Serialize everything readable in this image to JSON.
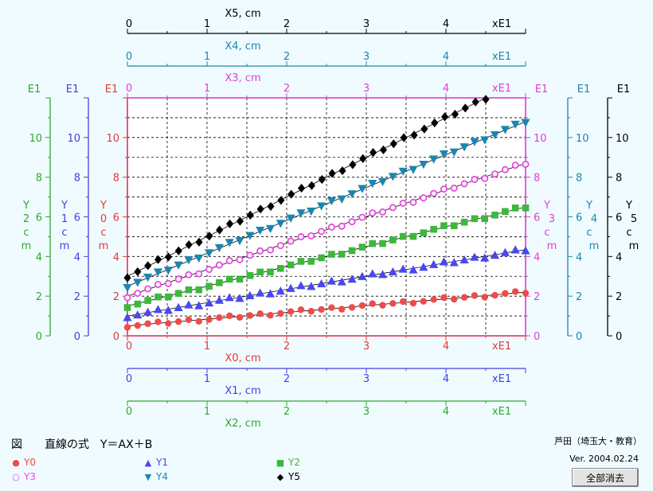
{
  "chart_data": {
    "type": "scatter",
    "x_axes": [
      {
        "id": "X5",
        "label": "X5, cm",
        "ticks": [
          "0",
          "1",
          "2",
          "3",
          "4"
        ],
        "unit": "xE1",
        "color": "#000000"
      },
      {
        "id": "X4",
        "label": "X4, cm",
        "ticks": [
          "0",
          "1",
          "2",
          "3",
          "4"
        ],
        "unit": "xE1",
        "color": "#1a86b0"
      },
      {
        "id": "X3",
        "label": "X3, cm",
        "ticks": [
          "0",
          "1",
          "2",
          "3",
          "4"
        ],
        "unit": "xE1",
        "color": "#e040d0"
      },
      {
        "id": "X0",
        "label": "X0, cm",
        "ticks": [
          "0",
          "1",
          "2",
          "3",
          "4"
        ],
        "unit": "xE1",
        "color": "#e03a3a"
      },
      {
        "id": "X1",
        "label": "X1, cm",
        "ticks": [
          "0",
          "1",
          "2",
          "3",
          "4"
        ],
        "unit": "xE1",
        "color": "#4040e0"
      },
      {
        "id": "X2",
        "label": "X2, cm",
        "ticks": [
          "0",
          "1",
          "2",
          "3",
          "4"
        ],
        "unit": "xE1",
        "color": "#2ea82e"
      }
    ],
    "y_axes": [
      {
        "id": "Y2",
        "side": "left",
        "exp": "E1",
        "label": "Y2 cm",
        "ticks": [
          "0",
          "2",
          "4",
          "6",
          "8",
          "10"
        ],
        "color": "#2ea82e"
      },
      {
        "id": "Y1",
        "side": "left",
        "exp": "E1",
        "label": "Y1 cm",
        "ticks": [
          "0",
          "2",
          "4",
          "6",
          "8",
          "10"
        ],
        "color": "#4040e0"
      },
      {
        "id": "Y0",
        "side": "left",
        "exp": "E1",
        "label": "Y0 cm",
        "ticks": [
          "0",
          "2",
          "4",
          "6",
          "8",
          "10"
        ],
        "color": "#e03a3a"
      },
      {
        "id": "Y3",
        "side": "right",
        "exp": "E1",
        "label": "Y3 cm",
        "ticks": [
          "0",
          "2",
          "4",
          "6",
          "8",
          "10"
        ],
        "color": "#e040d0"
      },
      {
        "id": "Y4",
        "side": "right",
        "exp": "E1",
        "label": "Y4 cm",
        "ticks": [
          "0",
          "2",
          "4",
          "6",
          "8",
          "10"
        ],
        "color": "#1a86b0"
      },
      {
        "id": "Y5",
        "side": "right",
        "exp": "E1",
        "label": "Y5 cm",
        "ticks": [
          "0",
          "2",
          "4",
          "6",
          "8",
          "10"
        ],
        "color": "#000000"
      }
    ],
    "x_range": [
      0,
      5
    ],
    "y_range": [
      0,
      12
    ],
    "grid": true,
    "series": [
      {
        "name": "Y0",
        "color": "#f04a4a",
        "marker": "circle",
        "x_start": 0,
        "x_end": 5,
        "y_start": 0.5,
        "y_end": 2.2,
        "n": 40
      },
      {
        "name": "Y1",
        "color": "#4848f0",
        "marker": "triangle-up",
        "x_start": 0,
        "x_end": 5,
        "y_start": 1.0,
        "y_end": 4.35,
        "n": 40
      },
      {
        "name": "Y2",
        "color": "#3cb83c",
        "marker": "square",
        "x_start": 0,
        "x_end": 5,
        "y_start": 1.5,
        "y_end": 6.5,
        "n": 40
      },
      {
        "name": "Y3",
        "color": "#e84ae0",
        "marker": "open-circle",
        "x_start": 0,
        "x_end": 5,
        "y_start": 2.0,
        "y_end": 8.7,
        "n": 40
      },
      {
        "name": "Y4",
        "color": "#1a86b0",
        "marker": "triangle-down",
        "x_start": 0,
        "x_end": 5,
        "y_start": 2.5,
        "y_end": 10.8,
        "n": 40
      },
      {
        "name": "Y5",
        "color": "#000000",
        "marker": "diamond",
        "x_start": 0,
        "x_end": 4.5,
        "y_start": 3.0,
        "y_end": 12.0,
        "n": 36
      }
    ]
  },
  "caption": "図　　直線の式　Y＝AX＋B",
  "legend": [
    {
      "name": "Y0",
      "symbol": "●",
      "color": "#f04a4a"
    },
    {
      "name": "Y1",
      "symbol": "▲",
      "color": "#4848f0"
    },
    {
      "name": "Y2",
      "symbol": "■",
      "color": "#3cb83c"
    },
    {
      "name": "Y3",
      "symbol": "○",
      "color": "#e84ae0"
    },
    {
      "name": "Y4",
      "symbol": "▼",
      "color": "#1a86b0"
    },
    {
      "name": "Y5",
      "symbol": "◆",
      "color": "#000000"
    }
  ],
  "credit": "芦田（埼玉大・教育）",
  "version": "Ver. 2004.02.24",
  "clear_button": "全部消去"
}
